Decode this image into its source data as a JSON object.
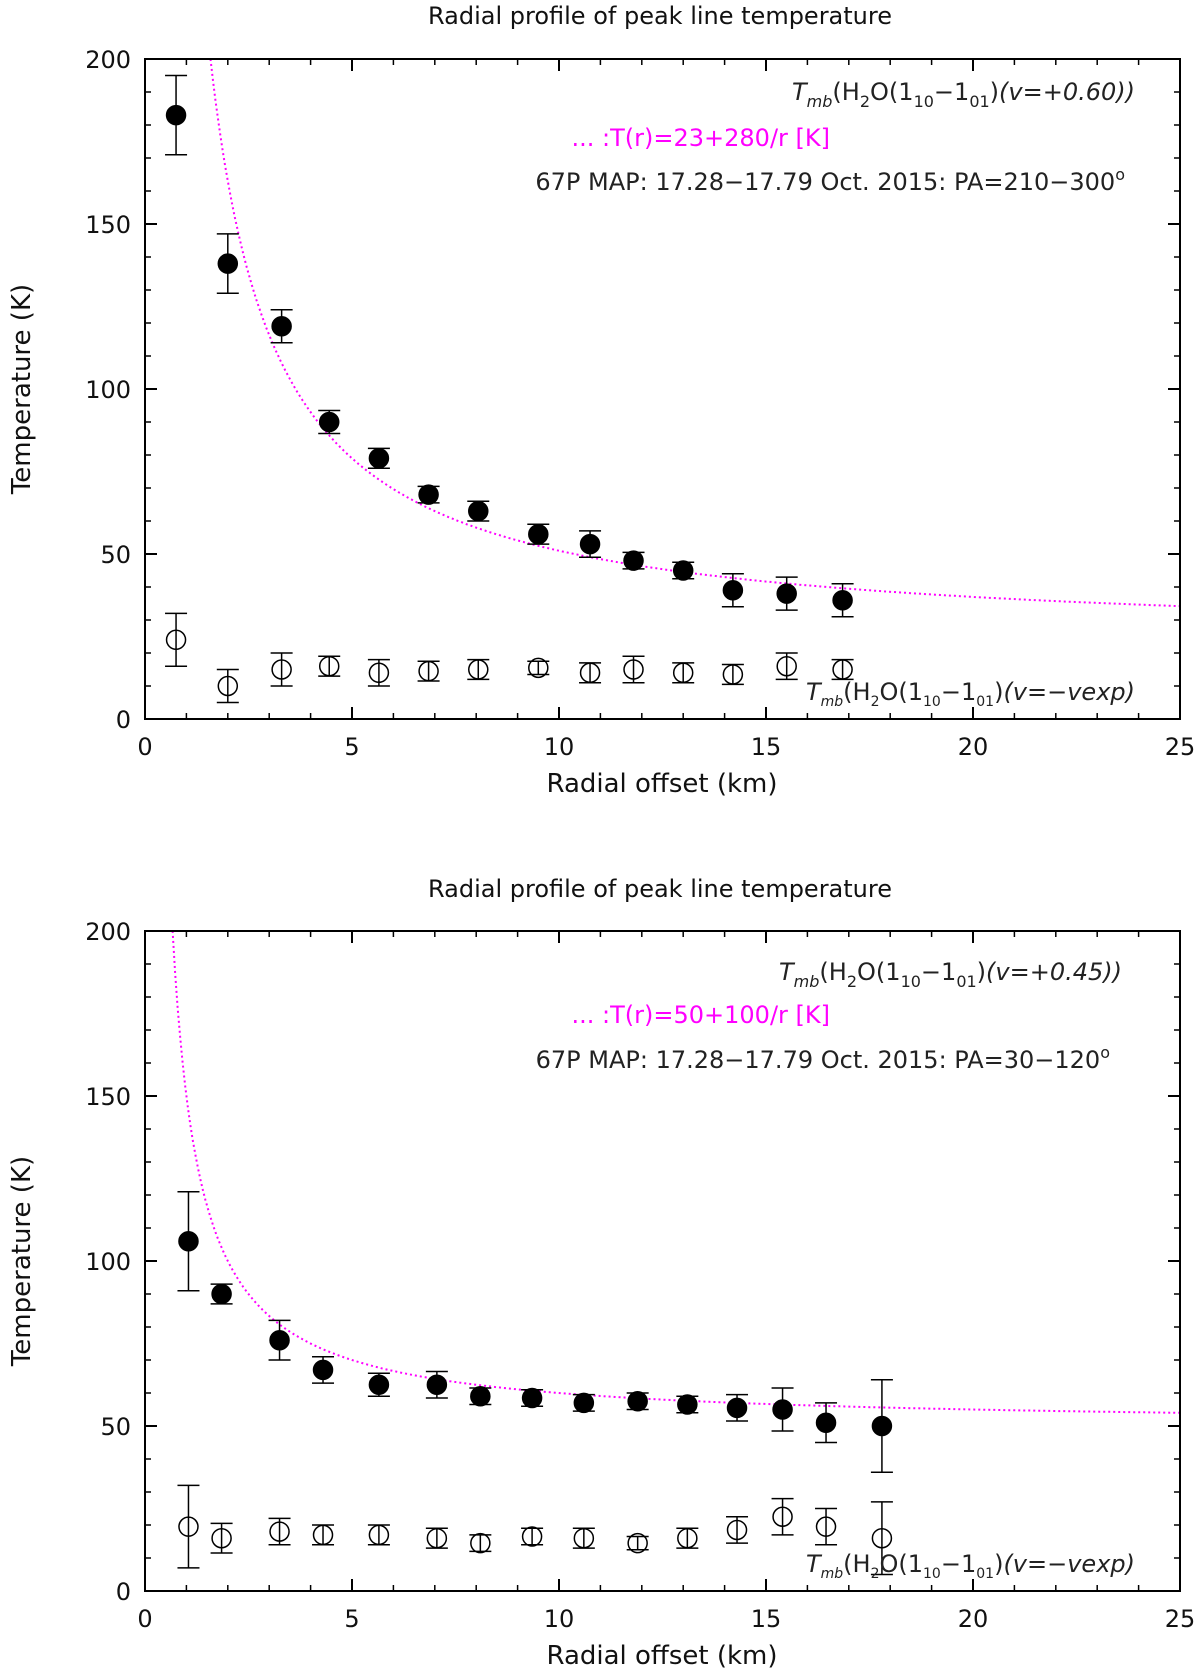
{
  "chart_data": [
    {
      "type": "scatter",
      "title": "Radial profile of peak line temperature",
      "xlabel": "Radial offset (km)",
      "ylabel": "Temperature (K)",
      "xlim": [
        0,
        25
      ],
      "ylim": [
        0,
        200
      ],
      "xticks": [
        0,
        5,
        10,
        15,
        20,
        25
      ],
      "yticks": [
        0,
        50,
        100,
        150,
        200
      ],
      "annotations": {
        "top_label": {
          "prefix_italic": "T",
          "prefix_sub": "mb",
          "open": "(H",
          "h2_sub": "2",
          "o_open": "O(1",
          "j_sub1": "10",
          "dash": "−1",
          "j_sub2": "01",
          "close": ")",
          "velocity": "(v=+0.60))"
        },
        "fit_label": "... :T(r)=23+280/r [K]",
        "map_label": "67P MAP: 17.28−17.79 Oct. 2015: PA=210−300",
        "map_degree": "o",
        "bottom_label": {
          "prefix_italic": "T",
          "prefix_sub": "mb",
          "open": "(H",
          "h2_sub": "2",
          "o_open": "O(1",
          "j_sub1": "10",
          "dash": "−1",
          "j_sub2": "01",
          "close": ")",
          "velocity": "(v=−vexp)"
        }
      },
      "fit": {
        "a": 23,
        "b": 280,
        "color": "#ff00ff"
      },
      "series": [
        {
          "name": "v=+0.60",
          "marker": "filled-circle",
          "x": [
            0.75,
            2.0,
            3.3,
            4.45,
            5.65,
            6.85,
            8.05,
            9.5,
            10.75,
            11.8,
            13.0,
            14.2,
            15.5,
            16.85
          ],
          "y": [
            183,
            138,
            119,
            90,
            79,
            68,
            63,
            56,
            53,
            48,
            45,
            39,
            38,
            36
          ],
          "err": [
            12,
            9,
            5,
            3.5,
            3,
            2.5,
            3,
            3,
            4,
            2.5,
            2.5,
            5,
            5,
            5
          ]
        },
        {
          "name": "v=-vexp",
          "marker": "open-circle",
          "x": [
            0.75,
            2.0,
            3.3,
            4.45,
            5.65,
            6.85,
            8.05,
            9.5,
            10.75,
            11.8,
            13.0,
            14.2,
            15.5,
            16.85
          ],
          "y": [
            24,
            10,
            15,
            16,
            14,
            14.5,
            15,
            15.5,
            14,
            15,
            14,
            13.5,
            16,
            15
          ],
          "err": [
            8,
            5,
            5,
            3,
            4,
            3,
            3,
            2,
            3,
            4,
            3,
            3,
            4,
            3
          ]
        }
      ]
    },
    {
      "type": "scatter",
      "title": "Radial profile of peak line temperature",
      "xlabel": "Radial offset (km)",
      "ylabel": "Temperature (K)",
      "xlim": [
        0,
        25
      ],
      "ylim": [
        0,
        200
      ],
      "xticks": [
        0,
        5,
        10,
        15,
        20,
        25
      ],
      "yticks": [
        0,
        50,
        100,
        150,
        200
      ],
      "annotations": {
        "top_label": {
          "prefix_italic": "T",
          "prefix_sub": "mb",
          "open": "(H",
          "h2_sub": "2",
          "o_open": "O(1",
          "j_sub1": "10",
          "dash": "−1",
          "j_sub2": "01",
          "close": ")",
          "velocity": "(v=+0.45))"
        },
        "fit_label": "... :T(r)=50+100/r [K]",
        "map_label": "67P MAP: 17.28−17.79 Oct. 2015: PA=30−120",
        "map_degree": "o",
        "bottom_label": {
          "prefix_italic": "T",
          "prefix_sub": "mb",
          "open": "(H",
          "h2_sub": "2",
          "o_open": "O(1",
          "j_sub1": "10",
          "dash": "−1",
          "j_sub2": "01",
          "close": ")",
          "velocity": "(v=−vexp)"
        }
      },
      "fit": {
        "a": 50,
        "b": 100,
        "color": "#ff00ff"
      },
      "series": [
        {
          "name": "v=+0.45",
          "marker": "filled-circle",
          "x": [
            1.05,
            1.85,
            3.25,
            4.3,
            5.65,
            7.05,
            8.1,
            9.35,
            10.6,
            11.9,
            13.1,
            14.3,
            15.4,
            16.45,
            17.8
          ],
          "y": [
            106,
            90,
            76,
            67,
            62.5,
            62.5,
            59,
            58.5,
            57,
            57.5,
            56.5,
            55.5,
            55,
            51,
            50
          ],
          "err": [
            15,
            3,
            6,
            4,
            3.5,
            4,
            2.5,
            2.5,
            2.5,
            2.5,
            2.5,
            4,
            6.5,
            6,
            14
          ]
        },
        {
          "name": "v=-vexp",
          "marker": "open-circle",
          "x": [
            1.05,
            1.85,
            3.25,
            4.3,
            5.65,
            7.05,
            8.1,
            9.35,
            10.6,
            11.9,
            13.1,
            14.3,
            15.4,
            16.45,
            17.8
          ],
          "y": [
            19.5,
            16,
            18,
            17,
            17,
            16,
            14.5,
            16.5,
            16,
            14.5,
            16,
            18.5,
            22.5,
            19.5,
            16
          ],
          "err": [
            12.5,
            4.5,
            4,
            3,
            3,
            3,
            2.5,
            2.5,
            3,
            2,
            3,
            4,
            5.5,
            5.5,
            11
          ]
        }
      ]
    }
  ]
}
